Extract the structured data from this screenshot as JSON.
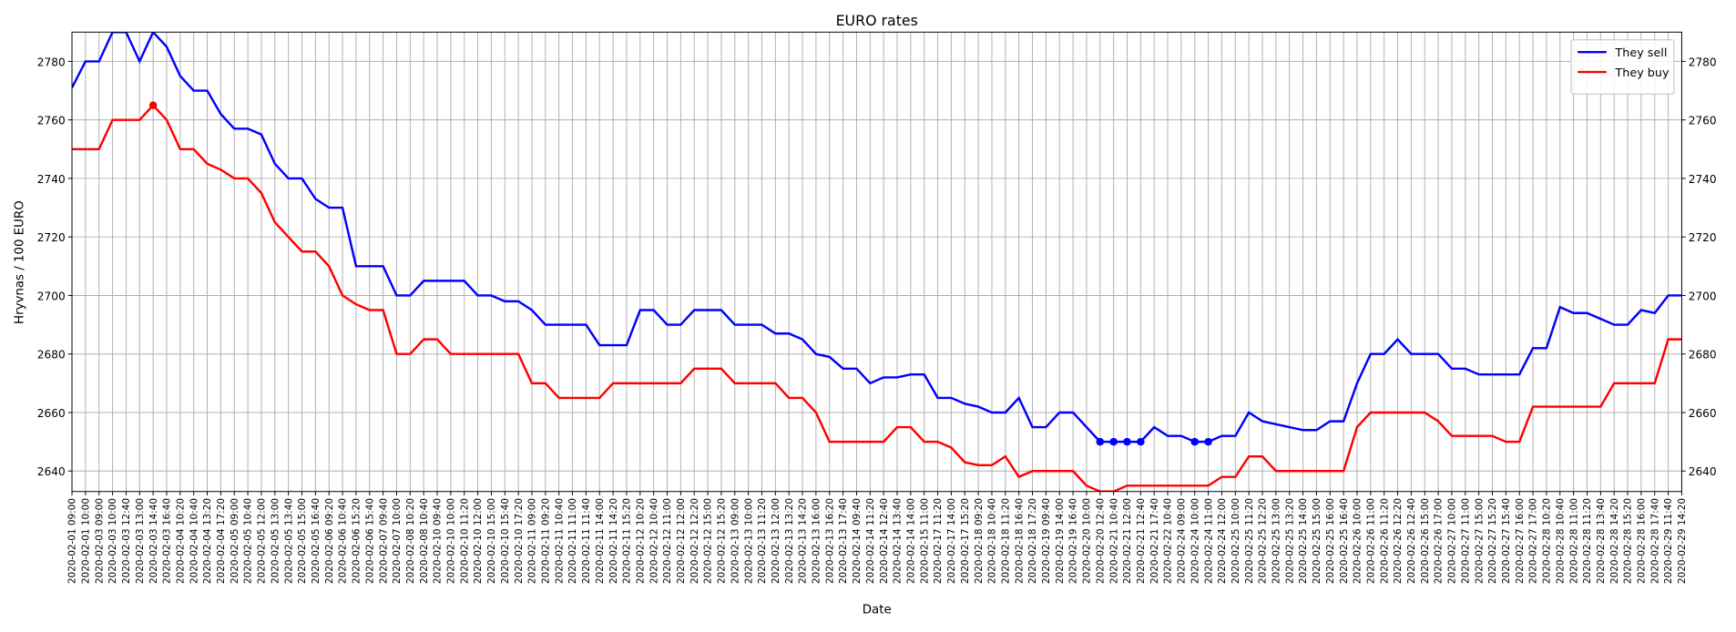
{
  "chart_data": {
    "type": "line",
    "title": "EURO rates",
    "x_label": "Date",
    "y_label": "Hryvnas / 100 EURO",
    "categories": [
      "2020-02-01 09:00",
      "2020-02-01 10:00",
      "2020-02-03 09:00",
      "2020-02-03 10:00",
      "2020-02-03 12:40",
      "2020-02-03 13:00",
      "2020-02-03 14:40",
      "2020-02-03 16:40",
      "2020-02-04 10:20",
      "2020-02-04 10:40",
      "2020-02-04 13:20",
      "2020-02-04 17:20",
      "2020-02-05 09:00",
      "2020-02-05 10:40",
      "2020-02-05 12:00",
      "2020-02-05 13:00",
      "2020-02-05 13:40",
      "2020-02-05 15:00",
      "2020-02-05 16:40",
      "2020-02-06 09:20",
      "2020-02-06 10:40",
      "2020-02-06 15:20",
      "2020-02-06 15:40",
      "2020-02-07 09:40",
      "2020-02-07 10:00",
      "2020-02-08 10:20",
      "2020-02-08 10:40",
      "2020-02-10 09:40",
      "2020-02-10 10:00",
      "2020-02-10 11:20",
      "2020-02-10 12:00",
      "2020-02-10 15:00",
      "2020-02-10 15:40",
      "2020-02-10 17:20",
      "2020-02-11 09:00",
      "2020-02-11 09:20",
      "2020-02-11 10:40",
      "2020-02-11 11:00",
      "2020-02-11 11:40",
      "2020-02-11 14:00",
      "2020-02-11 14:20",
      "2020-02-11 15:20",
      "2020-02-12 10:20",
      "2020-02-12 10:40",
      "2020-02-12 11:00",
      "2020-02-12 12:00",
      "2020-02-12 12:20",
      "2020-02-12 15:00",
      "2020-02-12 15:20",
      "2020-02-13 09:00",
      "2020-02-13 10:00",
      "2020-02-13 11:20",
      "2020-02-13 12:00",
      "2020-02-13 13:20",
      "2020-02-13 14:20",
      "2020-02-13 16:00",
      "2020-02-13 16:20",
      "2020-02-13 17:40",
      "2020-02-14 09:40",
      "2020-02-14 11:20",
      "2020-02-14 12:40",
      "2020-02-14 13:40",
      "2020-02-14 14:00",
      "2020-02-15 11:00",
      "2020-02-17 11:20",
      "2020-02-17 14:00",
      "2020-02-17 15:20",
      "2020-02-18 09:20",
      "2020-02-18 10:40",
      "2020-02-18 11:20",
      "2020-02-18 16:40",
      "2020-02-18 17:20",
      "2020-02-19 09:40",
      "2020-02-19 14:00",
      "2020-02-19 16:40",
      "2020-02-20 10:00",
      "2020-02-20 12:40",
      "2020-02-21 10:40",
      "2020-02-21 12:00",
      "2020-02-21 12:40",
      "2020-02-21 17:40",
      "2020-02-22 10:40",
      "2020-02-24 09:00",
      "2020-02-24 10:00",
      "2020-02-24 11:00",
      "2020-02-24 12:00",
      "2020-02-25 10:00",
      "2020-02-25 11:20",
      "2020-02-25 12:20",
      "2020-02-25 13:00",
      "2020-02-25 13:20",
      "2020-02-25 14:00",
      "2020-02-25 15:00",
      "2020-02-25 16:00",
      "2020-02-25 16:40",
      "2020-02-26 10:00",
      "2020-02-26 11:00",
      "2020-02-26 11:20",
      "2020-02-26 12:20",
      "2020-02-26 12:40",
      "2020-02-26 15:00",
      "2020-02-26 17:00",
      "2020-02-27 10:00",
      "2020-02-27 11:00",
      "2020-02-27 15:00",
      "2020-02-27 15:20",
      "2020-02-27 15:40",
      "2020-02-27 16:00",
      "2020-02-27 17:00",
      "2020-02-28 10:20",
      "2020-02-28 10:40",
      "2020-02-28 11:00",
      "2020-02-28 11:20",
      "2020-02-28 13:40",
      "2020-02-28 14:20",
      "2020-02-28 15:20",
      "2020-02-28 16:00",
      "2020-02-28 17:40",
      "2020-02-29 11:40",
      "2020-02-29 14:20"
    ],
    "series": [
      {
        "name": "They sell",
        "color": "#0000ff",
        "highlight": "min",
        "values": [
          2771,
          2780,
          2780,
          2790,
          2790,
          2780,
          2790,
          2785,
          2775,
          2770,
          2770,
          2762,
          2757,
          2757,
          2755,
          2745,
          2740,
          2740,
          2733,
          2730,
          2730,
          2710,
          2710,
          2710,
          2700,
          2700,
          2705,
          2705,
          2705,
          2705,
          2700,
          2700,
          2698,
          2698,
          2695,
          2690,
          2690,
          2690,
          2690,
          2683,
          2683,
          2683,
          2695,
          2695,
          2690,
          2690,
          2695,
          2695,
          2695,
          2690,
          2690,
          2690,
          2687,
          2687,
          2685,
          2680,
          2679,
          2675,
          2675,
          2670,
          2672,
          2672,
          2673,
          2673,
          2665,
          2665,
          2663,
          2662,
          2660,
          2660,
          2665,
          2655,
          2655,
          2660,
          2660,
          2655,
          2650,
          2650,
          2650,
          2650,
          2655,
          2652,
          2652,
          2650,
          2650,
          2652,
          2652,
          2660,
          2657,
          2656,
          2655,
          2654,
          2654,
          2657,
          2657,
          2670,
          2680,
          2680,
          2685,
          2680,
          2680,
          2680,
          2675,
          2675,
          2673,
          2673,
          2673,
          2673,
          2682,
          2682,
          2696,
          2694,
          2694,
          2692,
          2690,
          2690,
          2695,
          2694,
          2700,
          2700
        ]
      },
      {
        "name": "They buy",
        "color": "#ff0000",
        "highlight": "max",
        "values": [
          2750,
          2750,
          2750,
          2760,
          2760,
          2760,
          2765,
          2760,
          2750,
          2750,
          2745,
          2743,
          2740,
          2740,
          2735,
          2725,
          2720,
          2715,
          2715,
          2710,
          2700,
          2697,
          2695,
          2695,
          2680,
          2680,
          2685,
          2685,
          2680,
          2680,
          2680,
          2680,
          2680,
          2680,
          2670,
          2670,
          2665,
          2665,
          2665,
          2665,
          2670,
          2670,
          2670,
          2670,
          2670,
          2670,
          2675,
          2675,
          2675,
          2670,
          2670,
          2670,
          2670,
          2665,
          2665,
          2660,
          2650,
          2650,
          2650,
          2650,
          2650,
          2655,
          2655,
          2650,
          2650,
          2648,
          2643,
          2642,
          2642,
          2645,
          2638,
          2640,
          2640,
          2640,
          2640,
          2635,
          2633,
          2633,
          2635,
          2635,
          2635,
          2635,
          2635,
          2635,
          2635,
          2638,
          2638,
          2645,
          2645,
          2640,
          2640,
          2640,
          2640,
          2640,
          2640,
          2655,
          2660,
          2660,
          2660,
          2660,
          2660,
          2657,
          2652,
          2652,
          2652,
          2652,
          2650,
          2650,
          2662,
          2662,
          2662,
          2662,
          2662,
          2662,
          2670,
          2670,
          2670,
          2670,
          2685,
          2685
        ]
      }
    ],
    "ylim": [
      2633,
      2790
    ],
    "yticks": [
      2640,
      2660,
      2680,
      2700,
      2720,
      2740,
      2760,
      2780
    ],
    "grid": true,
    "legend": "upper right",
    "right_axis": true
  }
}
